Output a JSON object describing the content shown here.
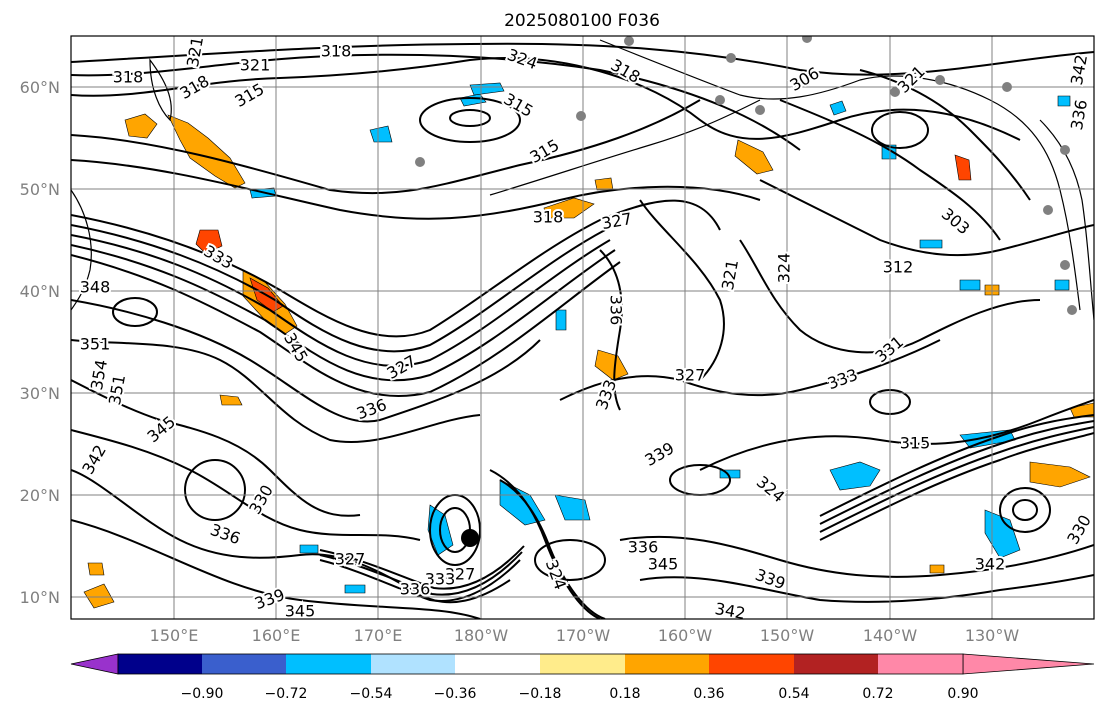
{
  "title": "2025080100 F036",
  "map": {
    "lat_labels": [
      "60°N",
      "50°N",
      "40°N",
      "30°N",
      "20°N",
      "10°N"
    ],
    "lon_labels": [
      "150°E",
      "160°E",
      "170°E",
      "180°W",
      "170°W",
      "160°W",
      "150°W",
      "140°W",
      "130°W"
    ],
    "contour_labels": [
      "321",
      "318",
      "318",
      "318",
      "321",
      "315",
      "324",
      "315",
      "318",
      "315",
      "306",
      "321",
      "327",
      "318",
      "321",
      "324",
      "312",
      "303",
      "348",
      "333",
      "345",
      "351",
      "354",
      "351",
      "345",
      "342",
      "327",
      "333",
      "336",
      "339",
      "324",
      "315",
      "336",
      "324",
      "339",
      "330",
      "336",
      "327",
      "333",
      "331",
      "327",
      "342",
      "345",
      "339",
      "342",
      "336",
      "345",
      "342",
      "336",
      "330",
      "327",
      "333",
      "336"
    ],
    "contour_color": "#000000",
    "land_color": "#000000",
    "grid_color": "#808080"
  },
  "colorbar": {
    "labels": [
      "−0.90",
      "−0.72",
      "−0.54",
      "−0.36",
      "−0.18",
      "0.18",
      "0.36",
      "0.54",
      "0.72",
      "0.90"
    ],
    "colors": [
      "#9932cc",
      "#00008b",
      "#3a5fcd",
      "#00bfff",
      "#b0e2ff",
      "#ffffff",
      "#ffec8b",
      "#ffa500",
      "#ff4500",
      "#b22222",
      "#ff88a8"
    ]
  }
}
